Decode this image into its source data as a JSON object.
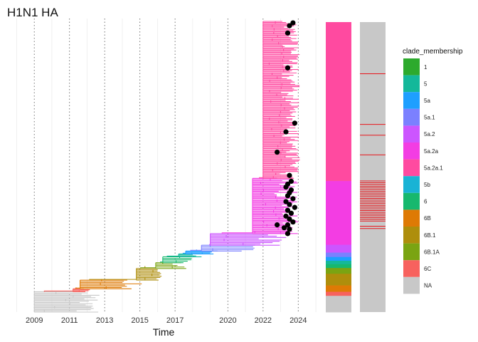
{
  "title": "H1N1 HA",
  "chart_data": {
    "type": "phylogenetic-tree",
    "title": "H1N1 HA",
    "xlabel": "Time",
    "ylabel": "",
    "x_ticks": [
      "2009",
      "2011",
      "2013",
      "2015",
      "2017",
      "2020",
      "2022",
      "2024"
    ],
    "x_tick_values": [
      2009.0,
      2011.0,
      2013.0,
      2015.0,
      2017.0,
      2020.0,
      2022.0,
      2024.0
    ],
    "xlim": [
      2007.9,
      2025.2
    ],
    "grid": "vertical dotted lines at tick years",
    "legend": {
      "title": "clade_membership",
      "placement": "right",
      "entries": [
        {
          "label": "1",
          "color": "#2DAA2D"
        },
        {
          "label": "5",
          "color": "#14B89A"
        },
        {
          "label": "5a",
          "color": "#1E9FFF"
        },
        {
          "label": "5a.1",
          "color": "#7B80FF"
        },
        {
          "label": "5a.2",
          "color": "#CC55FF"
        },
        {
          "label": "5a.2a",
          "color": "#F33DE3"
        },
        {
          "label": "5a.2a.1",
          "color": "#FF4AA0"
        },
        {
          "label": "5b",
          "color": "#19B3D5"
        },
        {
          "label": "6",
          "color": "#17B86E"
        },
        {
          "label": "6B",
          "color": "#DE7A05"
        },
        {
          "label": "6B.1",
          "color": "#AE8E0C"
        },
        {
          "label": "6B.1A",
          "color": "#7AA412"
        },
        {
          "label": "6C",
          "color": "#F7625E"
        },
        {
          "label": "NA",
          "color": "#C8C8C8"
        }
      ]
    },
    "clade_spans": [
      {
        "clade": "NA",
        "x_start": 2009.0,
        "x_end": 2012.8,
        "tip_frac": [
          0.0,
          0.07
        ]
      },
      {
        "clade": "6C",
        "x_start": 2011.2,
        "x_end": 2012.2,
        "tip_frac": [
          0.07,
          0.08
        ]
      },
      {
        "clade": "6B",
        "x_start": 2011.6,
        "x_end": 2015.2,
        "tip_frac": [
          0.08,
          0.11
        ]
      },
      {
        "clade": "6B.1",
        "x_start": 2014.8,
        "x_end": 2016.4,
        "tip_frac": [
          0.11,
          0.15
        ]
      },
      {
        "clade": "6B.1A",
        "x_start": 2015.9,
        "x_end": 2017.7,
        "tip_frac": [
          0.15,
          0.17
        ]
      },
      {
        "clade": "6",
        "x_start": 2016.3,
        "x_end": 2018.0,
        "tip_frac": [
          0.17,
          0.19
        ]
      },
      {
        "clade": "5",
        "x_start": 2017.2,
        "x_end": 2018.9,
        "tip_frac": [
          0.19,
          0.2
        ]
      },
      {
        "clade": "5a",
        "x_start": 2017.6,
        "x_end": 2019.5,
        "tip_frac": [
          0.2,
          0.21
        ]
      },
      {
        "clade": "5a.1",
        "x_start": 2018.5,
        "x_end": 2021.6,
        "tip_frac": [
          0.21,
          0.23
        ]
      },
      {
        "clade": "5a.2",
        "x_start": 2019.0,
        "x_end": 2023.5,
        "tip_frac": [
          0.23,
          0.27
        ]
      },
      {
        "clade": "5a.2a",
        "x_start": 2021.4,
        "x_end": 2024.0,
        "tip_frac": [
          0.27,
          0.46
        ]
      },
      {
        "clade": "5a.2a.1",
        "x_start": 2022.0,
        "x_end": 2024.1,
        "tip_frac": [
          0.46,
          1.0
        ]
      }
    ],
    "highlighted_tips": [
      {
        "x": 2023.7,
        "tip_frac": 0.995
      },
      {
        "x": 2023.5,
        "tip_frac": 0.985
      },
      {
        "x": 2023.4,
        "tip_frac": 0.96
      },
      {
        "x": 2023.4,
        "tip_frac": 0.84
      },
      {
        "x": 2023.8,
        "tip_frac": 0.65
      },
      {
        "x": 2023.3,
        "tip_frac": 0.62
      },
      {
        "x": 2022.8,
        "tip_frac": 0.55
      },
      {
        "x": 2023.5,
        "tip_frac": 0.47
      },
      {
        "x": 2023.6,
        "tip_frac": 0.45
      },
      {
        "x": 2023.4,
        "tip_frac": 0.44
      },
      {
        "x": 2023.3,
        "tip_frac": 0.43
      },
      {
        "x": 2023.6,
        "tip_frac": 0.42
      },
      {
        "x": 2023.5,
        "tip_frac": 0.41
      },
      {
        "x": 2023.4,
        "tip_frac": 0.4
      },
      {
        "x": 2023.7,
        "tip_frac": 0.39
      },
      {
        "x": 2023.3,
        "tip_frac": 0.38
      },
      {
        "x": 2023.5,
        "tip_frac": 0.37
      },
      {
        "x": 2023.8,
        "tip_frac": 0.36
      },
      {
        "x": 2023.4,
        "tip_frac": 0.35
      },
      {
        "x": 2023.6,
        "tip_frac": 0.34
      },
      {
        "x": 2023.3,
        "tip_frac": 0.33
      },
      {
        "x": 2023.5,
        "tip_frac": 0.32
      },
      {
        "x": 2023.7,
        "tip_frac": 0.31
      },
      {
        "x": 2023.4,
        "tip_frac": 0.3
      },
      {
        "x": 2023.2,
        "tip_frac": 0.29
      },
      {
        "x": 2023.5,
        "tip_frac": 0.285
      },
      {
        "x": 2022.8,
        "tip_frac": 0.3
      },
      {
        "x": 2023.4,
        "tip_frac": 0.27
      }
    ],
    "annotation_strips": [
      {
        "name": "clade strip",
        "blocks": [
          {
            "clade": "5a.2a.1",
            "from": 0.0,
            "to": 0.548
          },
          {
            "clade": "5a.2a",
            "from": 0.548,
            "to": 0.768
          },
          {
            "clade": "5a.2",
            "from": 0.768,
            "to": 0.795
          },
          {
            "clade": "5a.1",
            "from": 0.795,
            "to": 0.81
          },
          {
            "clade": "5a",
            "from": 0.81,
            "to": 0.823
          },
          {
            "clade": "5",
            "from": 0.823,
            "to": 0.835
          },
          {
            "clade": "6",
            "from": 0.835,
            "to": 0.848
          },
          {
            "clade": "6B.1A",
            "from": 0.848,
            "to": 0.868
          },
          {
            "clade": "6B.1",
            "from": 0.868,
            "to": 0.908
          },
          {
            "clade": "6B",
            "from": 0.908,
            "to": 0.93
          },
          {
            "clade": "6C",
            "from": 0.93,
            "to": 0.944
          },
          {
            "clade": "NA",
            "from": 0.944,
            "to": 1.0
          }
        ]
      },
      {
        "name": "highlight strip",
        "base_color": "#C8C8C8",
        "line_color": "#E8151B",
        "line_positions": [
          0.178,
          0.353,
          0.39,
          0.458,
          0.548,
          0.554,
          0.56,
          0.566,
          0.572,
          0.578,
          0.584,
          0.59,
          0.596,
          0.602,
          0.608,
          0.614,
          0.62,
          0.626,
          0.632,
          0.638,
          0.644,
          0.65,
          0.656,
          0.662,
          0.668,
          0.674,
          0.68,
          0.686,
          0.704,
          0.712
        ]
      }
    ]
  }
}
